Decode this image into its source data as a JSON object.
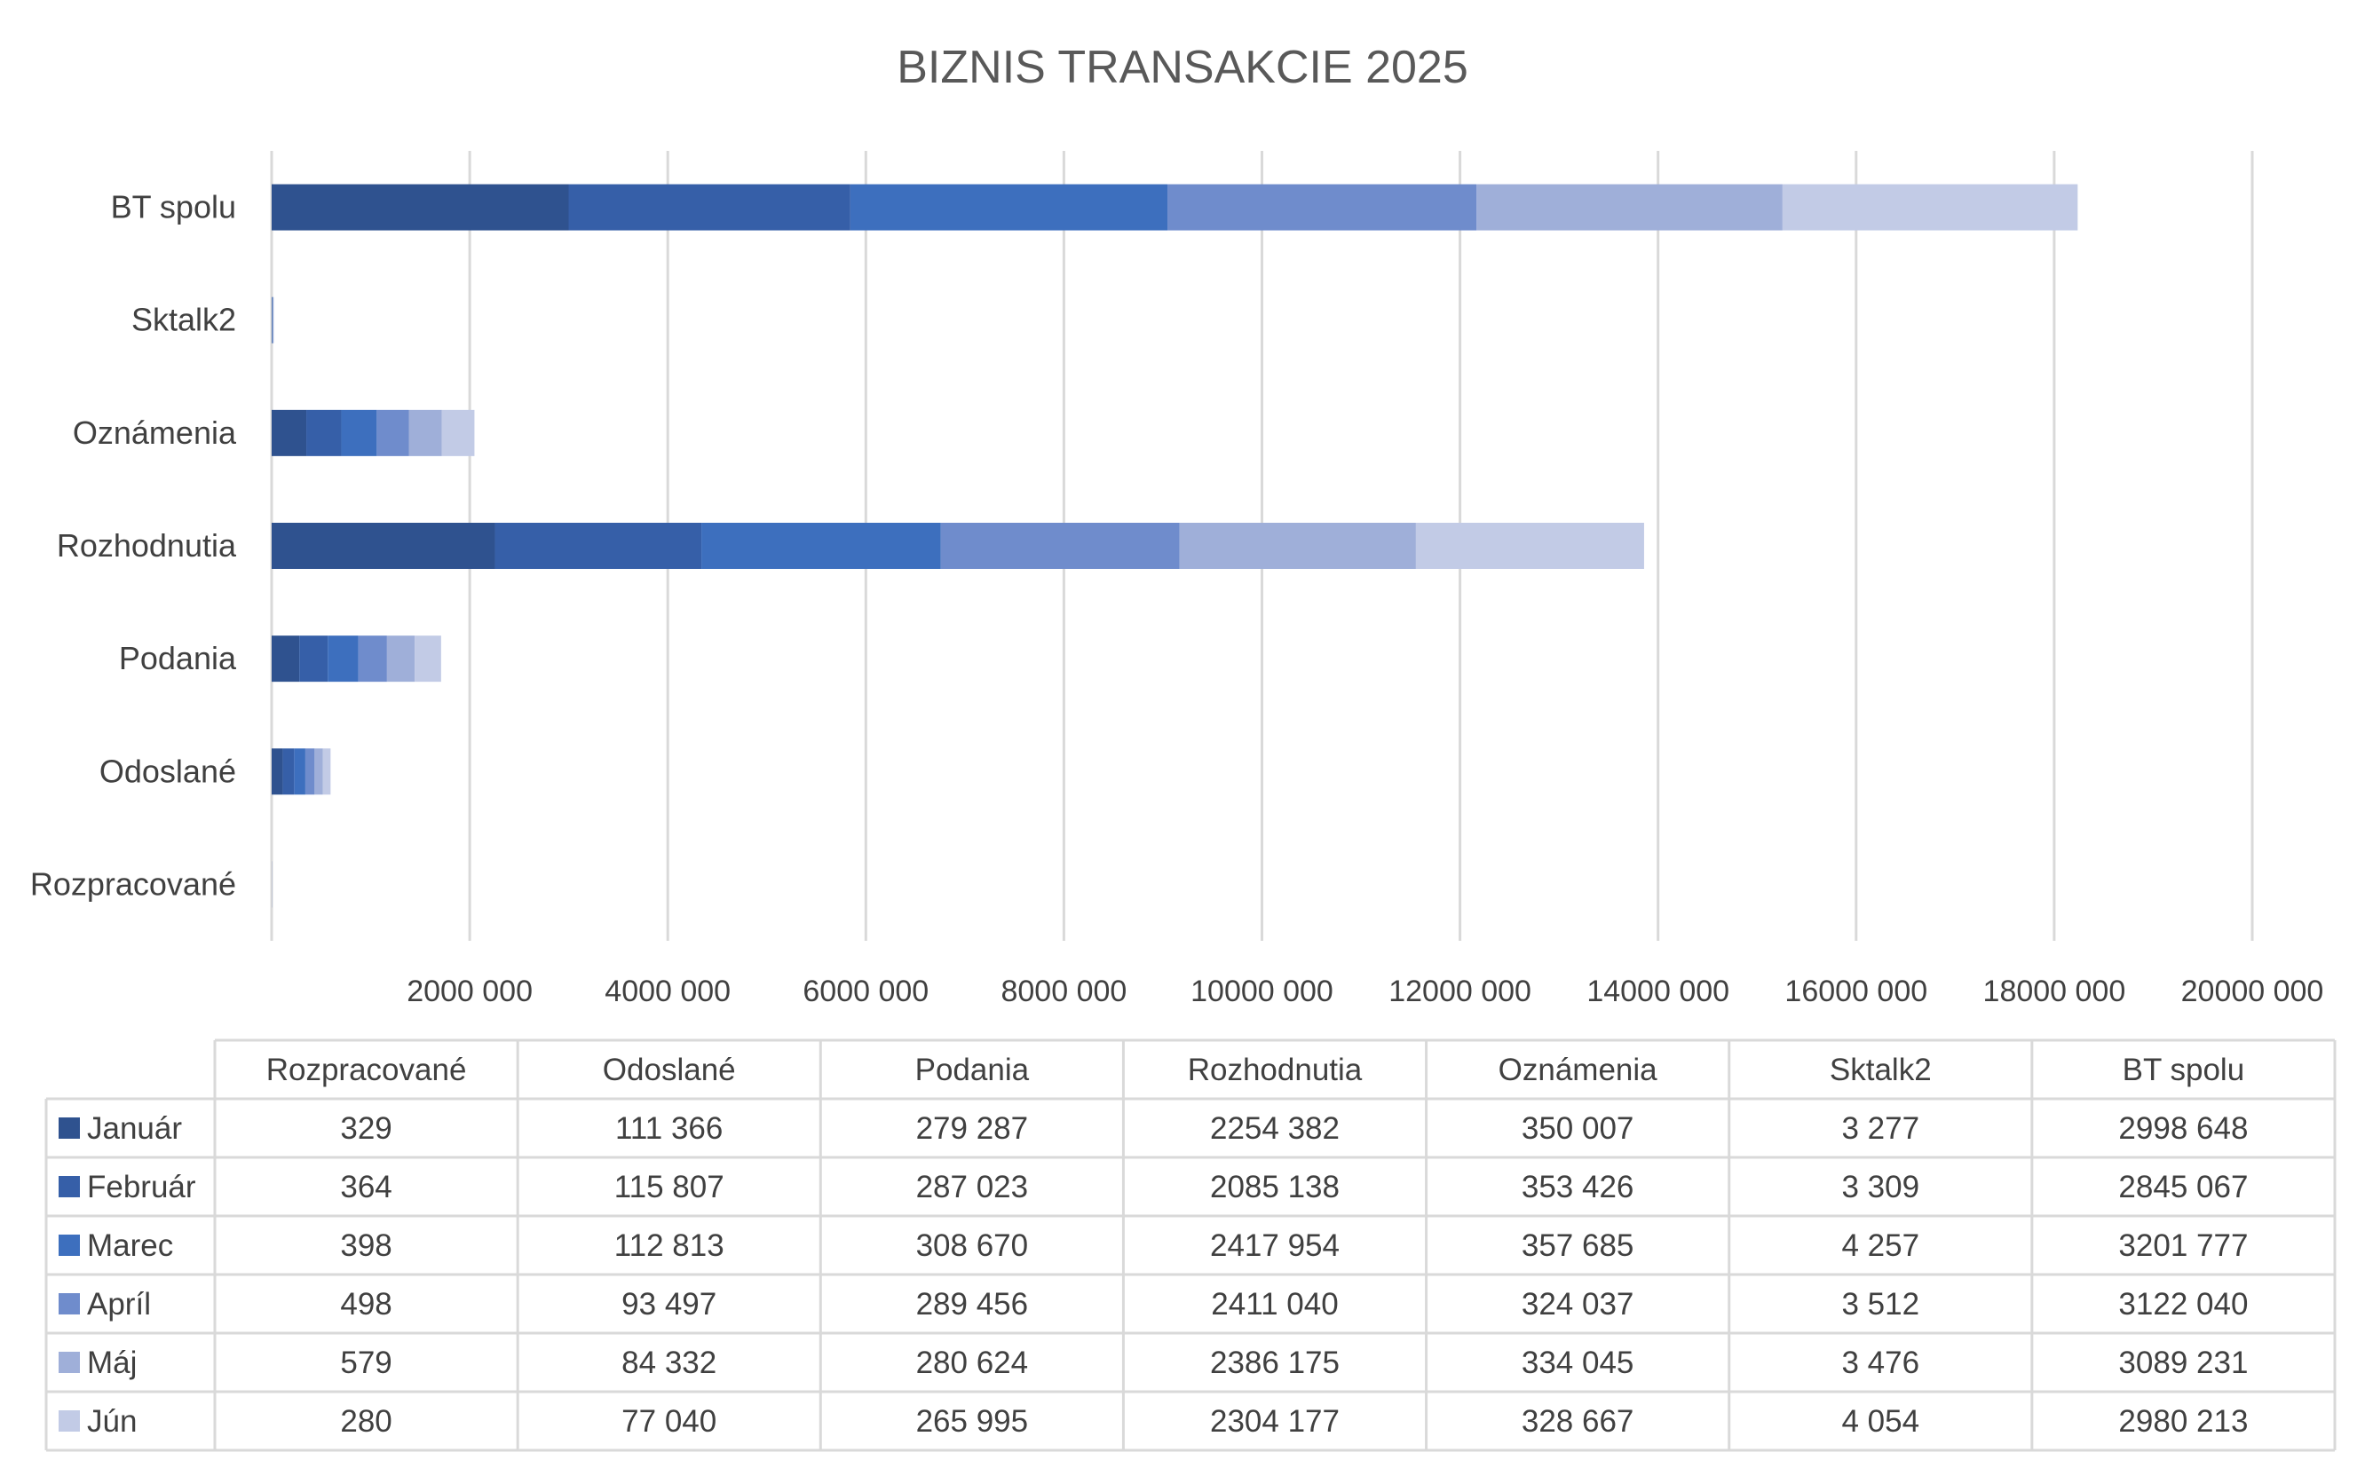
{
  "chart_data": {
    "type": "bar",
    "orientation": "horizontal",
    "stacked": true,
    "title": "BIZNIS TRANSAKCIE 2025",
    "categories": [
      "Rozpracované",
      "Odoslané",
      "Podania",
      "Rozhodnutia",
      "Oznámenia",
      "Sktalk2",
      "BT spolu"
    ],
    "xlim": [
      0,
      20000000
    ],
    "x_ticks": [
      2000000,
      4000000,
      6000000,
      8000000,
      10000000,
      12000000,
      14000000,
      16000000,
      18000000,
      20000000
    ],
    "x_tick_labels": [
      "2000 000",
      "4000 000",
      "6000 000",
      "8000 000",
      "10000 000",
      "12000 000",
      "14000 000",
      "16000 000",
      "18000 000",
      "20000 000"
    ],
    "grid": true,
    "legend_placement": "data-table",
    "series": [
      {
        "name": "Január",
        "color": "#2f528f",
        "values": [
          329,
          111366,
          279287,
          2254382,
          350007,
          3277,
          2998648
        ],
        "labels": [
          "329",
          "111 366",
          "279 287",
          "2254 382",
          "350 007",
          "3 277",
          "2998 648"
        ]
      },
      {
        "name": "Február",
        "color": "#365fa8",
        "values": [
          364,
          115807,
          287023,
          2085138,
          353426,
          3309,
          2845067
        ],
        "labels": [
          "364",
          "115 807",
          "287 023",
          "2085 138",
          "353 426",
          "3 309",
          "2845 067"
        ]
      },
      {
        "name": "Marec",
        "color": "#3d6fbe",
        "values": [
          398,
          112813,
          308670,
          2417954,
          357685,
          4257,
          3201777
        ],
        "labels": [
          "398",
          "112 813",
          "308 670",
          "2417 954",
          "357 685",
          "4 257",
          "3201 777"
        ]
      },
      {
        "name": "Apríl",
        "color": "#6f8ccc",
        "values": [
          498,
          93497,
          289456,
          2411040,
          324037,
          3512,
          3122040
        ],
        "labels": [
          "498",
          "93 497",
          "289 456",
          "2411 040",
          "324 037",
          "3 512",
          "3122 040"
        ]
      },
      {
        "name": "Máj",
        "color": "#9fafd9",
        "values": [
          579,
          84332,
          280624,
          2386175,
          334045,
          3476,
          3089231
        ],
        "labels": [
          "579",
          "84 332",
          "280 624",
          "2386 175",
          "334 045",
          "3 476",
          "3089 231"
        ]
      },
      {
        "name": "Jún",
        "color": "#c2cbe6",
        "values": [
          280,
          77040,
          265995,
          2304177,
          328667,
          4054,
          2980213
        ],
        "labels": [
          "280",
          "77 040",
          "265 995",
          "2304 177",
          "328 667",
          "4 054",
          "2980 213"
        ]
      }
    ]
  }
}
